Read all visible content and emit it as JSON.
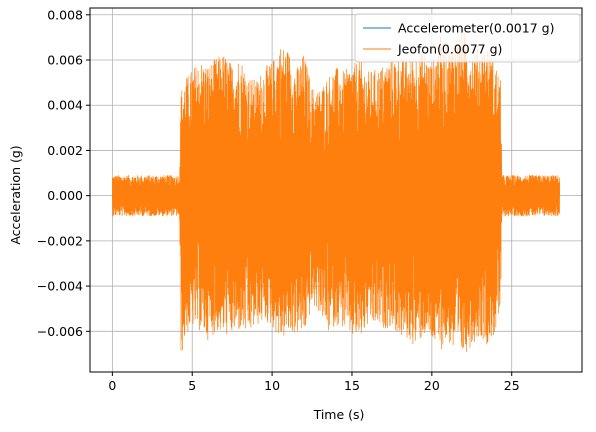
{
  "chart_data": {
    "type": "line",
    "xlabel": "Time (s)",
    "ylabel": "Acceleration (g)",
    "xlim": [
      -1.4,
      29.4
    ],
    "ylim": [
      -0.0078,
      0.0083
    ],
    "xticks": [
      0,
      5,
      10,
      15,
      20,
      25
    ],
    "xtick_labels": [
      "0",
      "5",
      "10",
      "15",
      "20",
      "25"
    ],
    "yticks": [
      -0.006,
      -0.004,
      -0.002,
      0.0,
      0.002,
      0.004,
      0.006,
      0.008
    ],
    "ytick_labels": [
      "−0.006",
      "−0.004",
      "−0.002",
      "0.000",
      "0.002",
      "0.004",
      "0.006",
      "0.008"
    ],
    "grid": true,
    "legend_position": "top-right",
    "series": [
      {
        "name": "Accelerometer(0.0017 g)",
        "color": "#1f77b4",
        "description_values": {
          "time_start": 0.0,
          "time_end": 28.0,
          "strong_motion_start": 4.3,
          "strong_motion_end": 24.4,
          "quiet_amplitude": 0.0004,
          "peak_amplitude": 0.0017
        }
      },
      {
        "name": "Jeofon(0.0077 g)",
        "color": "#ff7f0e",
        "envelope": {
          "time": [
            0.0,
            4.2,
            4.3,
            4.6,
            5.0,
            5.5,
            6.0,
            6.5,
            7.0,
            7.5,
            8.0,
            8.5,
            9.0,
            9.5,
            10.0,
            10.5,
            11.0,
            11.5,
            12.0,
            12.5,
            13.0,
            13.5,
            14.0,
            14.5,
            15.0,
            15.5,
            16.0,
            16.5,
            17.0,
            17.5,
            18.0,
            18.5,
            19.0,
            19.5,
            20.0,
            20.5,
            21.0,
            21.5,
            22.0,
            22.5,
            23.0,
            23.5,
            24.0,
            24.3,
            24.4,
            28.0
          ],
          "upper": [
            0.0009,
            0.0009,
            0.0047,
            0.0052,
            0.0056,
            0.006,
            0.0058,
            0.0061,
            0.0063,
            0.0058,
            0.0062,
            0.0053,
            0.0051,
            0.0057,
            0.0059,
            0.0067,
            0.0065,
            0.0056,
            0.0063,
            0.0048,
            0.0047,
            0.0053,
            0.0057,
            0.0055,
            0.0058,
            0.006,
            0.0055,
            0.0056,
            0.0058,
            0.0061,
            0.0062,
            0.006,
            0.0063,
            0.0064,
            0.0058,
            0.0071,
            0.0065,
            0.0071,
            0.0074,
            0.0065,
            0.0066,
            0.0066,
            0.0058,
            0.0051,
            0.0009,
            0.0009
          ],
          "lower": [
            -0.0009,
            -0.0009,
            -0.0072,
            -0.0062,
            -0.0058,
            -0.006,
            -0.0064,
            -0.006,
            -0.0062,
            -0.0062,
            -0.006,
            -0.0062,
            -0.0058,
            -0.0056,
            -0.0058,
            -0.0064,
            -0.0062,
            -0.0061,
            -0.0062,
            -0.0049,
            -0.0052,
            -0.0061,
            -0.0057,
            -0.0059,
            -0.0063,
            -0.0064,
            -0.0058,
            -0.0058,
            -0.0059,
            -0.0058,
            -0.0063,
            -0.0064,
            -0.0067,
            -0.0062,
            -0.0065,
            -0.0069,
            -0.0064,
            -0.0072,
            -0.0071,
            -0.0066,
            -0.0062,
            -0.0066,
            -0.0061,
            -0.0052,
            -0.0009,
            -0.0009
          ]
        }
      }
    ]
  }
}
